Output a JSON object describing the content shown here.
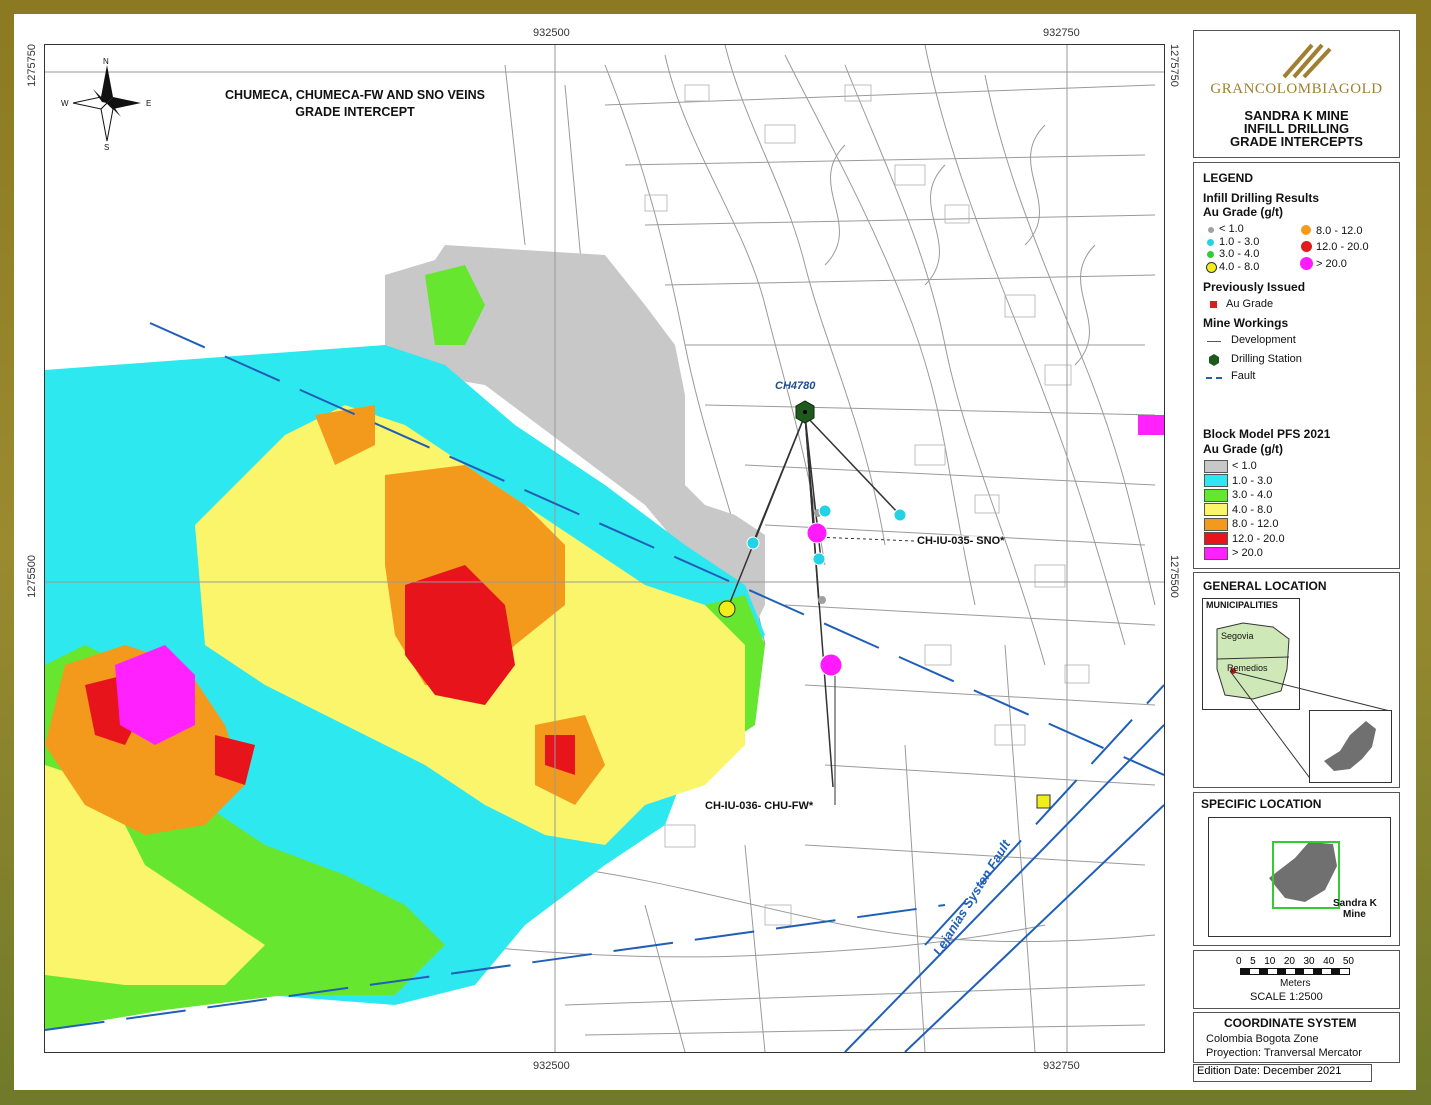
{
  "map": {
    "title_line1": "CHUMECA,  CHUMECA-FW AND SNO  VEINS",
    "title_line2": "GRADE INTERCEPT",
    "coords": {
      "top_x1": "932500",
      "top_x2": "932750",
      "bottom_x1": "932500",
      "bottom_x2": "932750",
      "left_y1": "1275750",
      "left_y2": "1275500",
      "right_y1": "1275750",
      "right_y2": "1275500"
    },
    "north": {
      "n": "N",
      "s": "S",
      "w": "W",
      "e": "E"
    },
    "station_label": "CH4780",
    "callout_1": "CH-IU-035- SNO*",
    "callout_2": "CH-IU-036- CHU-FW*",
    "fault_label": "Lejanias Systen Fault"
  },
  "header": {
    "company": "GRANCOLOMBIAGOLD",
    "title_line1": "SANDRA K MINE",
    "title_line2": "INFILL DRILLING",
    "title_line3": "GRADE INTERCEPTS"
  },
  "legend": {
    "title": "LEGEND",
    "infill_title": "Infill Drilling Results",
    "infill_sub": "Au Grade (g/t)",
    "infill_items": [
      {
        "label": "< 1.0",
        "color": "#a0a0a0"
      },
      {
        "label": "1.0 - 3.0",
        "color": "#22d3e6"
      },
      {
        "label": "3.0 - 4.0",
        "color": "#33cc33"
      },
      {
        "label": "4.0 - 8.0",
        "color": "#f2ee1a"
      },
      {
        "label": "8.0 - 12.0",
        "color": "#f59b1a"
      },
      {
        "label": "12.0 - 20.0",
        "color": "#e01b1b"
      },
      {
        "label": "> 20.0",
        "color": "#ff1aff"
      }
    ],
    "prev_title": "Previously Issued",
    "prev_item": "Au Grade",
    "workings_title": "Mine Workings",
    "workings_items": [
      "Development",
      "Drilling Station",
      "Fault"
    ],
    "block_title": "Block Model PFS 2021",
    "block_sub": "Au Grade (g/t)",
    "block_items": [
      {
        "label": "< 1.0",
        "color": "#c8c8c8"
      },
      {
        "label": "1.0 - 3.0",
        "color": "#2ee8f0"
      },
      {
        "label": "3.0 - 4.0",
        "color": "#66e62e"
      },
      {
        "label": "4.0 - 8.0",
        "color": "#faf56a"
      },
      {
        "label": "8.0 - 12.0",
        "color": "#f39a1c"
      },
      {
        "label": "12.0 - 20.0",
        "color": "#e8141c"
      },
      {
        "label": "> 20.0",
        "color": "#ff22ff"
      }
    ]
  },
  "general": {
    "title": "GENERAL LOCATION",
    "municipalities": "MUNICIPALITIES",
    "segovia": "Segovia",
    "remedios": "Remedios"
  },
  "specific": {
    "title": "SPECIFIC LOCATION",
    "label_line1": "Sandra K",
    "label_line2": "Mine"
  },
  "scale": {
    "ticks": [
      "0",
      "5",
      "10",
      "20",
      "30",
      "40",
      "50"
    ],
    "unit": "Meters",
    "text": "SCALE 1:2500"
  },
  "coordsys": {
    "title": "COORDINATE SYSTEM",
    "line1": "Colombia Bogota Zone",
    "line2": "Proyection: Tranversal Mercator"
  },
  "edition": "Edition Date: December 2021"
}
